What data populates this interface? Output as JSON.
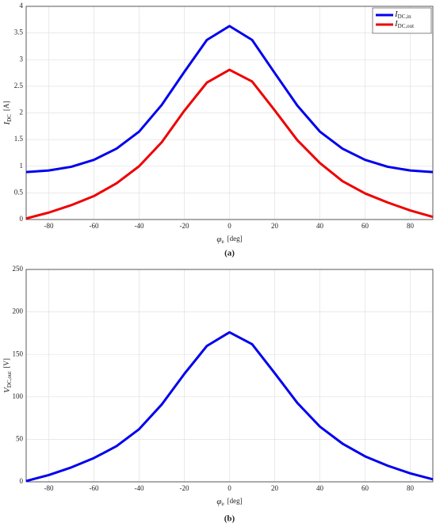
{
  "chart_data": [
    {
      "type": "line",
      "caption": "(a)",
      "xlabel": {
        "symbol": "φ",
        "subscript": "e",
        "unit": "[deg]"
      },
      "ylabel": {
        "symbol": "I",
        "subscript": "DC",
        "unit": "[A]"
      },
      "x": [
        -90,
        -80,
        -70,
        -60,
        -50,
        -40,
        -30,
        -20,
        -10,
        0,
        10,
        20,
        30,
        40,
        50,
        60,
        70,
        80,
        90
      ],
      "series": [
        {
          "name": {
            "symbol": "I",
            "subscript": "DC,in"
          },
          "color": "#0000ee",
          "values": [
            0.89,
            0.92,
            0.99,
            1.12,
            1.33,
            1.65,
            2.15,
            2.77,
            3.37,
            3.63,
            3.37,
            2.75,
            2.14,
            1.65,
            1.33,
            1.12,
            0.99,
            0.92,
            0.89
          ]
        },
        {
          "name": {
            "symbol": "I",
            "subscript": "DC,out"
          },
          "color": "#ee0000",
          "values": [
            0.02,
            0.13,
            0.27,
            0.44,
            0.68,
            1.0,
            1.45,
            2.04,
            2.57,
            2.81,
            2.59,
            2.05,
            1.49,
            1.06,
            0.72,
            0.49,
            0.32,
            0.17,
            0.05
          ]
        }
      ],
      "xlim": [
        -90,
        90
      ],
      "xticks": [
        -80,
        -60,
        -40,
        -20,
        0,
        20,
        40,
        60,
        80
      ],
      "ylim": [
        0,
        4
      ],
      "yticks": [
        0,
        0.5,
        1,
        1.5,
        2,
        2.5,
        3,
        3.5,
        4
      ],
      "grid": true,
      "legend": "upper-right"
    },
    {
      "type": "line",
      "caption": "(b)",
      "xlabel": {
        "symbol": "φ",
        "subscript": "e",
        "unit": "[deg]"
      },
      "ylabel": {
        "symbol": "V",
        "subscript": "DC,out",
        "unit": "[V]"
      },
      "x": [
        -90,
        -80,
        -70,
        -60,
        -50,
        -40,
        -30,
        -20,
        -10,
        0,
        10,
        20,
        30,
        40,
        50,
        60,
        70,
        80,
        90
      ],
      "series": [
        {
          "color": "#0000ee",
          "values": [
            1,
            8,
            17,
            28,
            42,
            62,
            91,
            127,
            160,
            176,
            162,
            128,
            93,
            65,
            45,
            30,
            19,
            10,
            3
          ]
        }
      ],
      "xlim": [
        -90,
        90
      ],
      "xticks": [
        -80,
        -60,
        -40,
        -20,
        0,
        20,
        40,
        60,
        80
      ],
      "ylim": [
        0,
        250
      ],
      "yticks": [
        0,
        50,
        100,
        150,
        200,
        250
      ],
      "grid": true
    }
  ]
}
